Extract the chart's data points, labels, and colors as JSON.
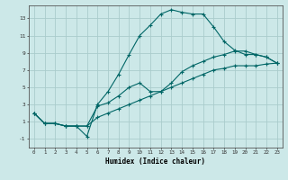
{
  "xlabel": "Humidex (Indice chaleur)",
  "bg_color": "#cce8e8",
  "grid_color": "#aacccc",
  "line_color": "#006666",
  "xlim": [
    -0.5,
    23.5
  ],
  "ylim": [
    -2,
    14.5
  ],
  "xticks": [
    0,
    1,
    2,
    3,
    4,
    5,
    6,
    7,
    8,
    9,
    10,
    11,
    12,
    13,
    14,
    15,
    16,
    17,
    18,
    19,
    20,
    21,
    22,
    23
  ],
  "yticks": [
    -1,
    1,
    3,
    5,
    7,
    9,
    11,
    13
  ],
  "lines": [
    {
      "x": [
        0,
        1,
        2,
        3,
        4,
        5,
        6,
        7,
        8,
        9,
        10,
        11,
        12,
        13,
        14,
        15,
        16,
        17,
        18,
        19,
        20,
        21,
        22,
        23
      ],
      "y": [
        2.0,
        0.8,
        0.8,
        0.5,
        0.5,
        -0.7,
        3.0,
        4.5,
        6.5,
        8.8,
        11.0,
        12.2,
        13.5,
        14.0,
        13.7,
        13.5,
        13.5,
        12.0,
        10.3,
        9.3,
        8.8,
        8.8,
        8.5,
        7.8
      ]
    },
    {
      "x": [
        0,
        1,
        2,
        3,
        4,
        5,
        6,
        7,
        8,
        9,
        10,
        11,
        12,
        13,
        14,
        15,
        16,
        17,
        18,
        19,
        20,
        21,
        22,
        23
      ],
      "y": [
        2.0,
        0.8,
        0.8,
        0.5,
        0.5,
        0.5,
        2.8,
        3.2,
        4.0,
        5.0,
        5.5,
        4.5,
        4.5,
        5.5,
        6.8,
        7.5,
        8.0,
        8.5,
        8.8,
        9.2,
        9.2,
        8.8,
        8.5,
        7.8
      ]
    },
    {
      "x": [
        0,
        1,
        2,
        3,
        4,
        5,
        6,
        7,
        8,
        9,
        10,
        11,
        12,
        13,
        14,
        15,
        16,
        17,
        18,
        19,
        20,
        21,
        22,
        23
      ],
      "y": [
        2.0,
        0.8,
        0.8,
        0.5,
        0.5,
        0.5,
        1.5,
        2.0,
        2.5,
        3.0,
        3.5,
        4.0,
        4.5,
        5.0,
        5.5,
        6.0,
        6.5,
        7.0,
        7.2,
        7.5,
        7.5,
        7.5,
        7.7,
        7.8
      ]
    }
  ]
}
